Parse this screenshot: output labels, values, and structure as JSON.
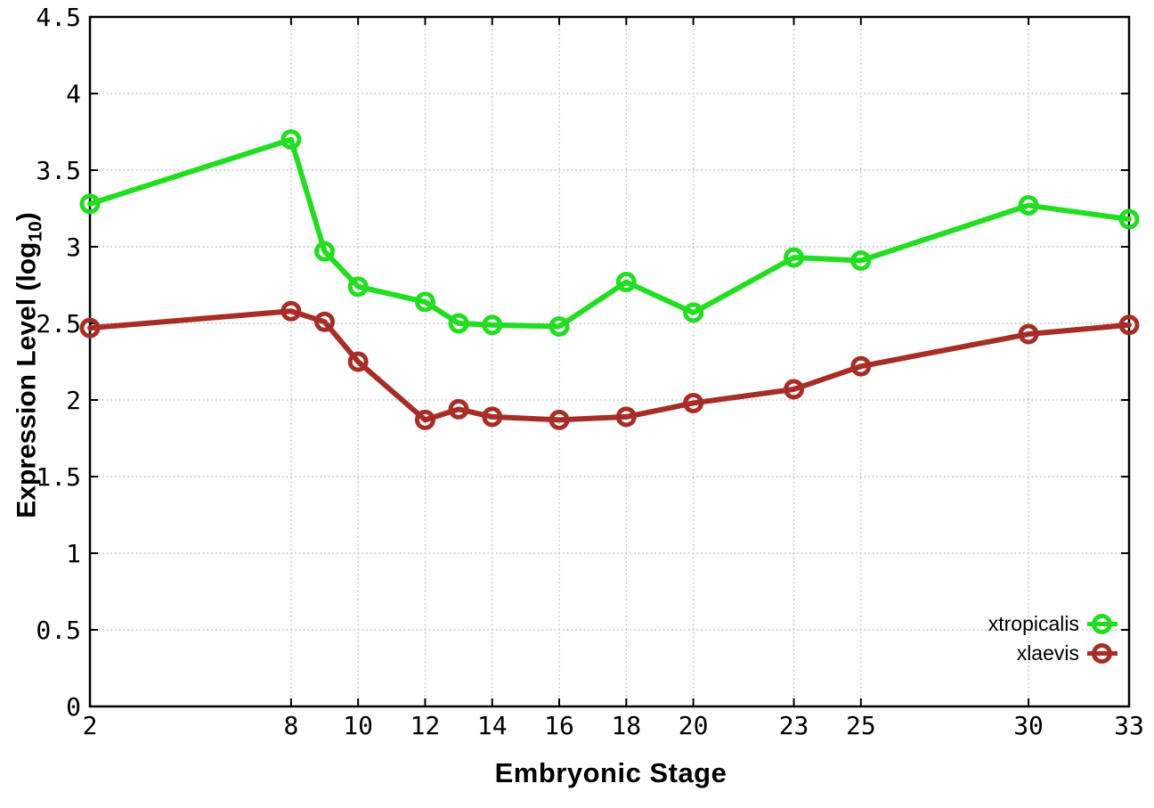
{
  "labels": {
    "xlabel": "Embryonic Stage",
    "ylabel_prefix": "Expression Level (log",
    "ylabel_sub": "10",
    "ylabel_suffix": ")"
  },
  "colors": {
    "axis": "#000000",
    "grid": "#b9b9b9",
    "text": "#000000",
    "xtropicalis_green": "#22dd22",
    "xlaevis_red": "#a62e26"
  },
  "chart_data": {
    "type": "line",
    "title": "",
    "xlabel": "Embryonic Stage",
    "ylabel": "Expression Level (log10)",
    "xlim": [
      2,
      33
    ],
    "ylim": [
      0,
      4.5
    ],
    "grid": true,
    "legend_position": "inside-bottom-right",
    "x": [
      2,
      8,
      9,
      10,
      12,
      13,
      14,
      16,
      18,
      20,
      23,
      25,
      30,
      33
    ],
    "x_tick_values": [
      2,
      8,
      10,
      12,
      14,
      16,
      18,
      20,
      23,
      25,
      30,
      33
    ],
    "x_tick_labels": [
      "2",
      "8",
      "10",
      "12",
      "14",
      "16",
      "18",
      "20",
      "23",
      "25",
      "30",
      "33"
    ],
    "y_tick_values": [
      0,
      0.5,
      1,
      1.5,
      2,
      2.5,
      3,
      3.5,
      4,
      4.5
    ],
    "y_tick_labels": [
      "0",
      "0.5",
      "1",
      "1.5",
      "2",
      "2.5",
      "3",
      "3.5",
      "4",
      "4.5"
    ],
    "series": [
      {
        "name": "xtropicalis",
        "color": "#22dd22",
        "marker": "open-circle",
        "values": [
          3.28,
          3.7,
          2.97,
          2.74,
          2.64,
          2.5,
          2.49,
          2.48,
          2.77,
          2.57,
          2.93,
          2.91,
          3.27,
          3.18
        ]
      },
      {
        "name": "xlaevis",
        "color": "#a62e26",
        "marker": "open-circle",
        "values": [
          2.47,
          2.58,
          2.51,
          2.25,
          1.87,
          1.94,
          1.89,
          1.87,
          1.89,
          1.98,
          2.07,
          2.22,
          2.43,
          2.49
        ]
      }
    ]
  }
}
